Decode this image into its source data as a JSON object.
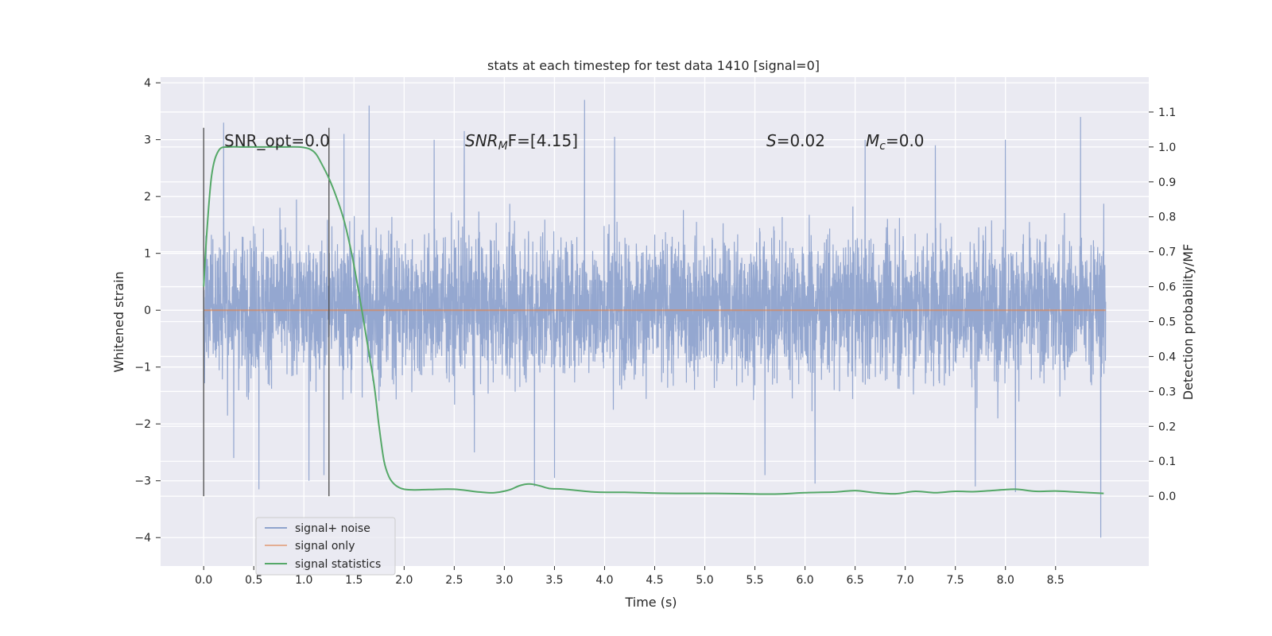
{
  "chart_data": {
    "type": "line",
    "title": "stats at each timestep for test data 1410 [signal=0]",
    "xlabel": "Time (s)",
    "ylabel_left": "Whitened strain",
    "ylabel_right": "Detection probability/MF",
    "xlim": [
      -0.43,
      9.43
    ],
    "ylim_left": [
      -4.5,
      4.1
    ],
    "ylim_right": [
      -0.2,
      1.2
    ],
    "xticks": [
      "0.0",
      "0.5",
      "1.0",
      "1.5",
      "2.0",
      "2.5",
      "3.0",
      "3.5",
      "4.0",
      "4.5",
      "5.0",
      "5.5",
      "6.0",
      "6.5",
      "7.0",
      "7.5",
      "8.0",
      "8.5"
    ],
    "xtick_values": [
      0.0,
      0.5,
      1.0,
      1.5,
      2.0,
      2.5,
      3.0,
      3.5,
      4.0,
      4.5,
      5.0,
      5.5,
      6.0,
      6.5,
      7.0,
      7.5,
      8.0,
      8.5
    ],
    "yticks_left": [
      "−4",
      "−3",
      "−2",
      "−1",
      "0",
      "1",
      "2",
      "3",
      "4"
    ],
    "ytick_values_left": [
      -4,
      -3,
      -2,
      -1,
      0,
      1,
      2,
      3,
      4
    ],
    "yticks_right": [
      "0.0",
      "0.1",
      "0.2",
      "0.3",
      "0.4",
      "0.5",
      "0.6",
      "0.7",
      "0.8",
      "0.9",
      "1.0",
      "1.1"
    ],
    "ytick_values_right": [
      0.0,
      0.1,
      0.2,
      0.3,
      0.4,
      0.5,
      0.6,
      0.7,
      0.8,
      0.9,
      1.0,
      1.1
    ],
    "grid": true,
    "legend_position": "lower-left",
    "annotations": {
      "snr_opt": "SNR_opt=0.0",
      "snr_mf_main": "SNR",
      "snr_mf_sub": "M",
      "snr_mf_tail": "F=[4.15]",
      "s_main": "S",
      "s_tail": "=0.02",
      "mc_main": "M",
      "mc_sub": "c",
      "mc_tail": "=0.0"
    },
    "vertical_lines_x": [
      0.0,
      1.25
    ],
    "series": [
      {
        "name": "signal+ noise",
        "axis": "left",
        "color": "#8fa3cd",
        "kind": "noise",
        "x_range": [
          0.0,
          9.0
        ],
        "envelope_typical": [
          -0.9,
          1.05
        ],
        "peaks_x": [
          0.2,
          1.4,
          1.65,
          2.3,
          2.6,
          3.3,
          3.8,
          4.1,
          5.6,
          6.1,
          6.6,
          7.3,
          8.0,
          8.75
        ],
        "peaks_y": [
          3.3,
          3.1,
          3.6,
          3.0,
          3.15,
          3.2,
          3.7,
          3.05,
          3.0,
          3.0,
          3.0,
          2.9,
          3.0,
          3.4
        ],
        "troughs_x": [
          0.3,
          0.55,
          1.05,
          1.2,
          2.7,
          3.3,
          3.5,
          5.6,
          6.1,
          7.7,
          8.1,
          8.95
        ],
        "troughs_y": [
          -2.6,
          -3.15,
          -3.0,
          -2.9,
          -2.5,
          -3.1,
          -2.95,
          -2.9,
          -3.05,
          -3.1,
          -3.2,
          -4.0
        ]
      },
      {
        "name": "signal only",
        "axis": "left",
        "color": "#dd8452",
        "x": [
          0.0,
          9.0
        ],
        "values": [
          0.0,
          0.0
        ]
      },
      {
        "name": "signal statistics",
        "axis": "right",
        "color": "#55a868",
        "x": [
          0.0,
          0.03,
          0.08,
          0.15,
          0.25,
          0.4,
          0.6,
          0.8,
          0.95,
          1.05,
          1.12,
          1.18,
          1.25,
          1.32,
          1.4,
          1.48,
          1.55,
          1.62,
          1.7,
          1.75,
          1.8,
          1.85,
          1.9,
          1.95,
          2.0,
          2.1,
          2.25,
          2.5,
          2.75,
          2.9,
          3.05,
          3.15,
          3.25,
          3.35,
          3.45,
          3.6,
          3.9,
          4.2,
          4.5,
          4.8,
          5.1,
          5.4,
          5.7,
          6.0,
          6.3,
          6.5,
          6.7,
          6.9,
          7.1,
          7.3,
          7.5,
          7.7,
          7.9,
          8.1,
          8.3,
          8.5,
          8.7,
          8.98
        ],
        "values": [
          0.6,
          0.75,
          0.92,
          0.99,
          1.0,
          1.0,
          1.0,
          1.0,
          1.0,
          0.995,
          0.98,
          0.95,
          0.91,
          0.86,
          0.79,
          0.69,
          0.58,
          0.46,
          0.32,
          0.2,
          0.1,
          0.055,
          0.035,
          0.025,
          0.02,
          0.018,
          0.019,
          0.02,
          0.012,
          0.01,
          0.018,
          0.03,
          0.035,
          0.03,
          0.022,
          0.02,
          0.012,
          0.011,
          0.009,
          0.008,
          0.008,
          0.007,
          0.006,
          0.01,
          0.012,
          0.016,
          0.01,
          0.007,
          0.014,
          0.01,
          0.014,
          0.013,
          0.017,
          0.02,
          0.014,
          0.015,
          0.012,
          0.008
        ]
      }
    ]
  }
}
